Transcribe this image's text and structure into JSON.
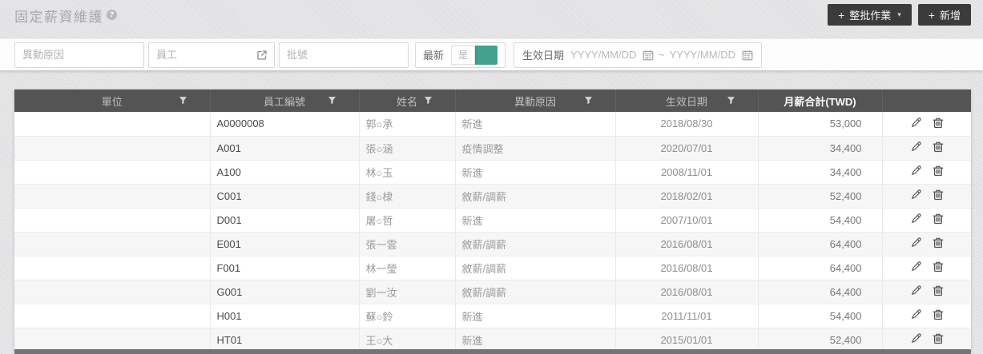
{
  "page": {
    "title": "固定薪資維護",
    "help": "?"
  },
  "toolbar": {
    "plus": "+",
    "caret": "▾",
    "batch_button_label": "整批作業",
    "add_button_label": "新增"
  },
  "filters": {
    "reason_placeholder": "異動原因",
    "employee_placeholder": "員工",
    "batch_placeholder": "批號",
    "latest_label": "最新",
    "latest_value": "是",
    "latest_on": true,
    "date_label": "生效日期",
    "date_from_placeholder": "YYYY/MM/DD",
    "date_to_placeholder": "YYYY/MM/DD",
    "date_separator": "~"
  },
  "colors": {
    "accent_teal": "#43a18e",
    "header_bg": "#545454",
    "button_bg": "#3b3b3b"
  },
  "table": {
    "columns": [
      {
        "key": "unit",
        "label": "單位",
        "filter": true
      },
      {
        "key": "emp_id",
        "label": "員工編號",
        "filter": true
      },
      {
        "key": "name",
        "label": "姓名",
        "filter": true
      },
      {
        "key": "reason",
        "label": "異動原因",
        "filter": true
      },
      {
        "key": "date",
        "label": "生效日期",
        "filter": true
      },
      {
        "key": "salary",
        "label": "月薪合計(TWD)",
        "filter": false
      },
      {
        "key": "actions",
        "label": "",
        "filter": false
      }
    ],
    "rows": [
      {
        "unit": "",
        "emp_id": "A0000008",
        "name": "郭○承",
        "reason": "新進",
        "date": "2018/08/30",
        "salary": "53,000"
      },
      {
        "unit": "",
        "emp_id": "A001",
        "name": "張○涵",
        "reason": "疫情調整",
        "date": "2020/07/01",
        "salary": "34,400"
      },
      {
        "unit": "",
        "emp_id": "A100",
        "name": "林○玉",
        "reason": "新進",
        "date": "2008/11/01",
        "salary": "34,400"
      },
      {
        "unit": "",
        "emp_id": "C001",
        "name": "錢○棣",
        "reason": "敘薪/調薪",
        "date": "2018/02/01",
        "salary": "52,400"
      },
      {
        "unit": "",
        "emp_id": "D001",
        "name": "屠○哲",
        "reason": "新進",
        "date": "2007/10/01",
        "salary": "54,400"
      },
      {
        "unit": "",
        "emp_id": "E001",
        "name": "張一雲",
        "reason": "敘薪/調薪",
        "date": "2016/08/01",
        "salary": "64,400"
      },
      {
        "unit": "",
        "emp_id": "F001",
        "name": "林一瑩",
        "reason": "敘薪/調薪",
        "date": "2016/08/01",
        "salary": "64,400"
      },
      {
        "unit": "",
        "emp_id": "G001",
        "name": "劉一汝",
        "reason": "敘薪/調薪",
        "date": "2016/08/01",
        "salary": "64,400"
      },
      {
        "unit": "",
        "emp_id": "H001",
        "name": "蘇○鈴",
        "reason": "新進",
        "date": "2011/11/01",
        "salary": "54,400"
      },
      {
        "unit": "",
        "emp_id": "HT01",
        "name": "王○大",
        "reason": "新進",
        "date": "2015/01/01",
        "salary": "52,400"
      }
    ]
  }
}
